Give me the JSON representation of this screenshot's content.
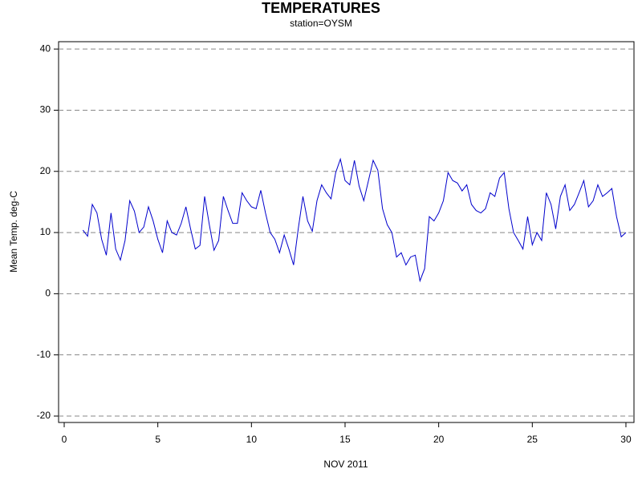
{
  "chart_data": {
    "type": "line",
    "title": "TEMPERATURES",
    "subtitle": "station=OYSM",
    "x_label": "NOV 2011",
    "y_label": "Mean Temp. deg-C",
    "x": [
      1,
      1.25,
      1.5,
      1.75,
      2,
      2.25,
      2.5,
      2.75,
      3,
      3.25,
      3.5,
      3.75,
      4,
      4.25,
      4.5,
      4.75,
      5,
      5.25,
      5.5,
      5.75,
      6,
      6.25,
      6.5,
      6.75,
      7,
      7.25,
      7.5,
      7.75,
      8,
      8.25,
      8.5,
      8.75,
      9,
      9.25,
      9.5,
      9.75,
      10,
      10.25,
      10.5,
      10.75,
      11,
      11.25,
      11.5,
      11.75,
      12,
      12.25,
      12.5,
      12.75,
      13,
      13.25,
      13.5,
      13.75,
      14,
      14.25,
      14.5,
      14.75,
      15,
      15.25,
      15.5,
      15.75,
      16,
      16.25,
      16.5,
      16.75,
      17,
      17.25,
      17.5,
      17.75,
      18,
      18.25,
      18.5,
      18.75,
      19,
      19.25,
      19.5,
      19.75,
      20,
      20.25,
      20.5,
      20.75,
      21,
      21.25,
      21.5,
      21.75,
      22,
      22.25,
      22.5,
      22.75,
      23,
      23.25,
      23.5,
      23.75,
      24,
      24.25,
      24.5,
      24.75,
      25,
      25.25,
      25.5,
      25.75,
      26,
      26.25,
      26.5,
      26.75,
      27,
      27.25,
      27.5,
      27.75,
      28,
      28.25,
      28.5,
      28.75,
      29,
      29.25,
      29.5,
      29.75,
      30
    ],
    "series": [
      {
        "name": "Mean Temp",
        "color": "#0000cc",
        "values": [
          10.4,
          9.4,
          14.6,
          13.2,
          8.9,
          6.3,
          13.2,
          7.3,
          5.5,
          8.7,
          15.2,
          13.5,
          10.0,
          10.9,
          14.2,
          11.9,
          8.9,
          6.7,
          11.9,
          10.0,
          9.6,
          11.5,
          14.2,
          10.6,
          7.3,
          7.9,
          15.9,
          11.3,
          7.1,
          8.7,
          15.9,
          13.6,
          11.5,
          11.5,
          16.5,
          15.2,
          14.2,
          13.9,
          16.9,
          13.2,
          10.0,
          8.9,
          6.7,
          9.6,
          7.3,
          4.7,
          10.6,
          15.9,
          11.9,
          10.2,
          15.2,
          17.8,
          16.5,
          15.5,
          19.8,
          22.0,
          18.5,
          17.8,
          21.8,
          17.6,
          15.2,
          18.5,
          21.8,
          20.2,
          13.9,
          11.3,
          10.0,
          6.0,
          6.7,
          4.7,
          6.0,
          6.3,
          2.1,
          4.1,
          12.6,
          11.9,
          13.2,
          15.2,
          19.8,
          18.5,
          18.1,
          16.8,
          17.8,
          14.6,
          13.6,
          13.2,
          13.9,
          16.5,
          15.9,
          18.9,
          19.8,
          13.9,
          10.0,
          8.7,
          7.3,
          12.6,
          8.0,
          10.0,
          8.7,
          16.5,
          14.6,
          10.6,
          15.9,
          17.8,
          13.6,
          14.6,
          16.5,
          18.5,
          14.2,
          15.2,
          17.8,
          15.9,
          16.5,
          17.2,
          12.6,
          9.3,
          10.0
        ]
      }
    ],
    "xlim": [
      -0.3,
      30.43
    ],
    "ylim": [
      -21.05,
      41.2
    ],
    "xticks": [
      0,
      5,
      10,
      15,
      20,
      25,
      30
    ],
    "yticks": [
      -20,
      -10,
      0,
      10,
      20,
      30,
      40
    ],
    "grid": true
  }
}
